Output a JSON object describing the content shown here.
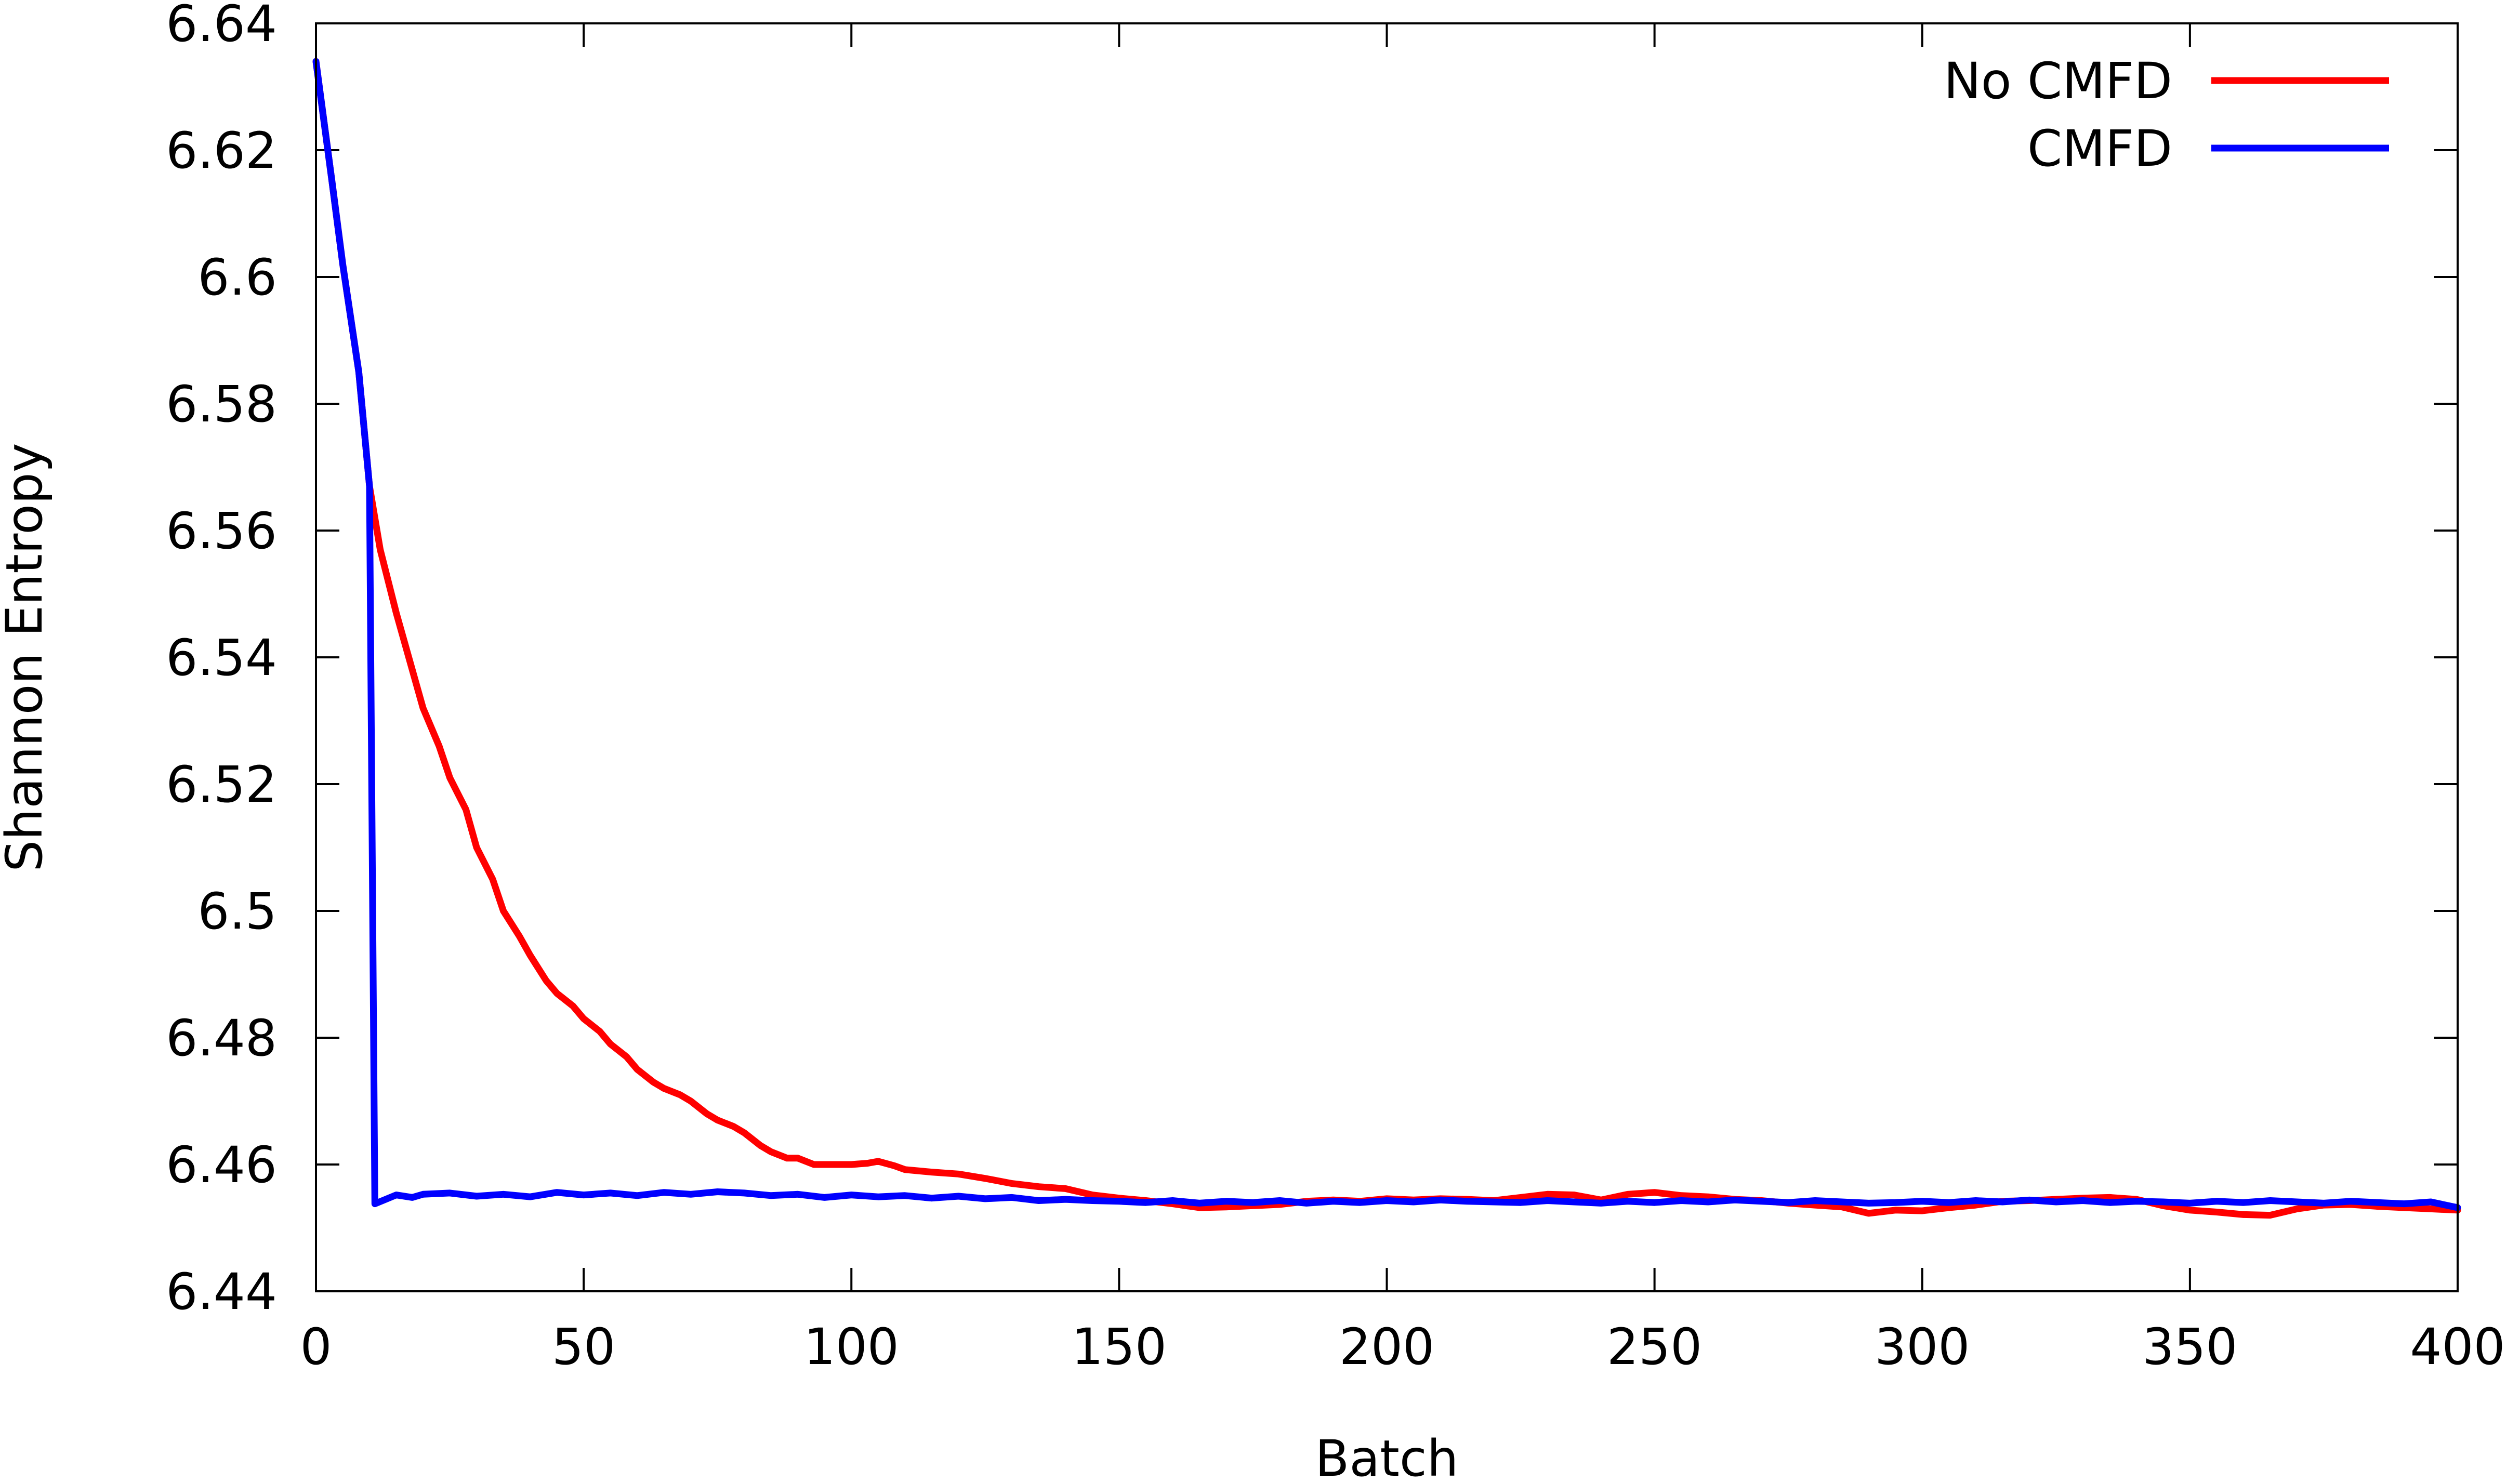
{
  "chart_data": {
    "type": "line",
    "title": "",
    "xlabel": "Batch",
    "ylabel": "Shannon Entropy",
    "xlim": [
      0,
      400
    ],
    "ylim": [
      6.44,
      6.64
    ],
    "xticks": [
      0,
      50,
      100,
      150,
      200,
      250,
      300,
      350,
      400
    ],
    "yticks": [
      6.44,
      6.46,
      6.48,
      6.5,
      6.52,
      6.54,
      6.56,
      6.58,
      6.6,
      6.62,
      6.64
    ],
    "xtick_labels": [
      "0",
      "50",
      "100",
      "150",
      "200",
      "250",
      "300",
      "350",
      "400"
    ],
    "ytick_labels": [
      "6.44",
      "6.46",
      "6.48",
      "6.5",
      "6.52",
      "6.54",
      "6.56",
      "6.58",
      "6.6",
      "6.62",
      "6.64"
    ],
    "grid": false,
    "legend_position": "top-right",
    "series": [
      {
        "name": "No CMFD",
        "color": "#ff0000",
        "points": [
          [
            0,
            6.634
          ],
          [
            3,
            6.615
          ],
          [
            5,
            6.602
          ],
          [
            8,
            6.585
          ],
          [
            10,
            6.567
          ],
          [
            12,
            6.557
          ],
          [
            15,
            6.547
          ],
          [
            18,
            6.538
          ],
          [
            20,
            6.532
          ],
          [
            23,
            6.526
          ],
          [
            25,
            6.521
          ],
          [
            28,
            6.516
          ],
          [
            30,
            6.51
          ],
          [
            33,
            6.505
          ],
          [
            35,
            6.5
          ],
          [
            38,
            6.496
          ],
          [
            40,
            6.493
          ],
          [
            43,
            6.489
          ],
          [
            45,
            6.487
          ],
          [
            48,
            6.485
          ],
          [
            50,
            6.483
          ],
          [
            53,
            6.481
          ],
          [
            55,
            6.479
          ],
          [
            58,
            6.477
          ],
          [
            60,
            6.475
          ],
          [
            63,
            6.473
          ],
          [
            65,
            6.472
          ],
          [
            68,
            6.471
          ],
          [
            70,
            6.47
          ],
          [
            73,
            6.468
          ],
          [
            75,
            6.467
          ],
          [
            78,
            6.466
          ],
          [
            80,
            6.465
          ],
          [
            83,
            6.463
          ],
          [
            85,
            6.462
          ],
          [
            88,
            6.461
          ],
          [
            90,
            6.461
          ],
          [
            93,
            6.46
          ],
          [
            95,
            6.46
          ],
          [
            100,
            6.46
          ],
          [
            103,
            6.4602
          ],
          [
            105,
            6.4605
          ],
          [
            108,
            6.4598
          ],
          [
            110,
            6.4592
          ],
          [
            115,
            6.4588
          ],
          [
            120,
            6.4585
          ],
          [
            125,
            6.4578
          ],
          [
            130,
            6.457
          ],
          [
            135,
            6.4565
          ],
          [
            140,
            6.4562
          ],
          [
            145,
            6.4552
          ],
          [
            150,
            6.4547
          ],
          [
            155,
            6.4543
          ],
          [
            160,
            6.4538
          ],
          [
            165,
            6.4532
          ],
          [
            170,
            6.4533
          ],
          [
            175,
            6.4535
          ],
          [
            180,
            6.4537
          ],
          [
            185,
            6.4542
          ],
          [
            190,
            6.4544
          ],
          [
            195,
            6.4542
          ],
          [
            200,
            6.4546
          ],
          [
            205,
            6.4544
          ],
          [
            210,
            6.4546
          ],
          [
            215,
            6.4545
          ],
          [
            220,
            6.4543
          ],
          [
            225,
            6.4548
          ],
          [
            230,
            6.4553
          ],
          [
            235,
            6.4552
          ],
          [
            240,
            6.4544
          ],
          [
            245,
            6.4553
          ],
          [
            250,
            6.4556
          ],
          [
            255,
            6.4551
          ],
          [
            260,
            6.4549
          ],
          [
            265,
            6.4545
          ],
          [
            270,
            6.4543
          ],
          [
            275,
            6.4539
          ],
          [
            280,
            6.4536
          ],
          [
            285,
            6.4533
          ],
          [
            290,
            6.4523
          ],
          [
            295,
            6.4528
          ],
          [
            300,
            6.4527
          ],
          [
            305,
            6.4532
          ],
          [
            310,
            6.4536
          ],
          [
            315,
            6.4542
          ],
          [
            320,
            6.4543
          ],
          [
            325,
            6.4545
          ],
          [
            330,
            6.4547
          ],
          [
            335,
            6.4548
          ],
          [
            340,
            6.4545
          ],
          [
            345,
            6.4535
          ],
          [
            350,
            6.4528
          ],
          [
            355,
            6.4525
          ],
          [
            360,
            6.4521
          ],
          [
            365,
            6.452
          ],
          [
            370,
            6.453
          ],
          [
            375,
            6.4536
          ],
          [
            380,
            6.4537
          ],
          [
            385,
            6.4534
          ],
          [
            390,
            6.4532
          ],
          [
            395,
            6.453
          ],
          [
            400,
            6.4528
          ]
        ]
      },
      {
        "name": "CMFD",
        "color": "#0000ff",
        "points": [
          [
            0,
            6.634
          ],
          [
            3,
            6.615
          ],
          [
            5,
            6.602
          ],
          [
            8,
            6.585
          ],
          [
            10,
            6.567
          ],
          [
            11,
            6.4538
          ],
          [
            13,
            6.4545
          ],
          [
            15,
            6.4552
          ],
          [
            18,
            6.4548
          ],
          [
            20,
            6.4553
          ],
          [
            25,
            6.4555
          ],
          [
            30,
            6.455
          ],
          [
            35,
            6.4553
          ],
          [
            40,
            6.4549
          ],
          [
            45,
            6.4556
          ],
          [
            50,
            6.4552
          ],
          [
            55,
            6.4555
          ],
          [
            60,
            6.4551
          ],
          [
            65,
            6.4556
          ],
          [
            70,
            6.4553
          ],
          [
            75,
            6.4557
          ],
          [
            80,
            6.4555
          ],
          [
            85,
            6.4551
          ],
          [
            90,
            6.4553
          ],
          [
            95,
            6.4548
          ],
          [
            100,
            6.4552
          ],
          [
            105,
            6.4549
          ],
          [
            110,
            6.4551
          ],
          [
            115,
            6.4547
          ],
          [
            120,
            6.455
          ],
          [
            125,
            6.4546
          ],
          [
            130,
            6.4548
          ],
          [
            135,
            6.4543
          ],
          [
            140,
            6.4545
          ],
          [
            145,
            6.4543
          ],
          [
            150,
            6.4542
          ],
          [
            155,
            6.454
          ],
          [
            160,
            6.4543
          ],
          [
            165,
            6.4539
          ],
          [
            170,
            6.4542
          ],
          [
            175,
            6.454
          ],
          [
            180,
            6.4543
          ],
          [
            185,
            6.4539
          ],
          [
            190,
            6.4542
          ],
          [
            195,
            6.454
          ],
          [
            200,
            6.4543
          ],
          [
            205,
            6.4541
          ],
          [
            210,
            6.4544
          ],
          [
            215,
            6.4542
          ],
          [
            220,
            6.4541
          ],
          [
            225,
            6.454
          ],
          [
            230,
            6.4543
          ],
          [
            235,
            6.4541
          ],
          [
            240,
            6.4539
          ],
          [
            245,
            6.4542
          ],
          [
            250,
            6.454
          ],
          [
            255,
            6.4543
          ],
          [
            260,
            6.4541
          ],
          [
            265,
            6.4544
          ],
          [
            270,
            6.4542
          ],
          [
            275,
            6.454
          ],
          [
            280,
            6.4543
          ],
          [
            285,
            6.4541
          ],
          [
            290,
            6.4539
          ],
          [
            295,
            6.454
          ],
          [
            300,
            6.4542
          ],
          [
            305,
            6.454
          ],
          [
            310,
            6.4543
          ],
          [
            315,
            6.4541
          ],
          [
            320,
            6.4544
          ],
          [
            325,
            6.4541
          ],
          [
            330,
            6.4543
          ],
          [
            335,
            6.454
          ],
          [
            340,
            6.4542
          ],
          [
            345,
            6.4541
          ],
          [
            350,
            6.4539
          ],
          [
            355,
            6.4542
          ],
          [
            360,
            6.454
          ],
          [
            365,
            6.4543
          ],
          [
            370,
            6.4541
          ],
          [
            375,
            6.4539
          ],
          [
            380,
            6.4542
          ],
          [
            385,
            6.454
          ],
          [
            390,
            6.4538
          ],
          [
            395,
            6.4541
          ],
          [
            400,
            6.4532
          ]
        ]
      }
    ]
  }
}
